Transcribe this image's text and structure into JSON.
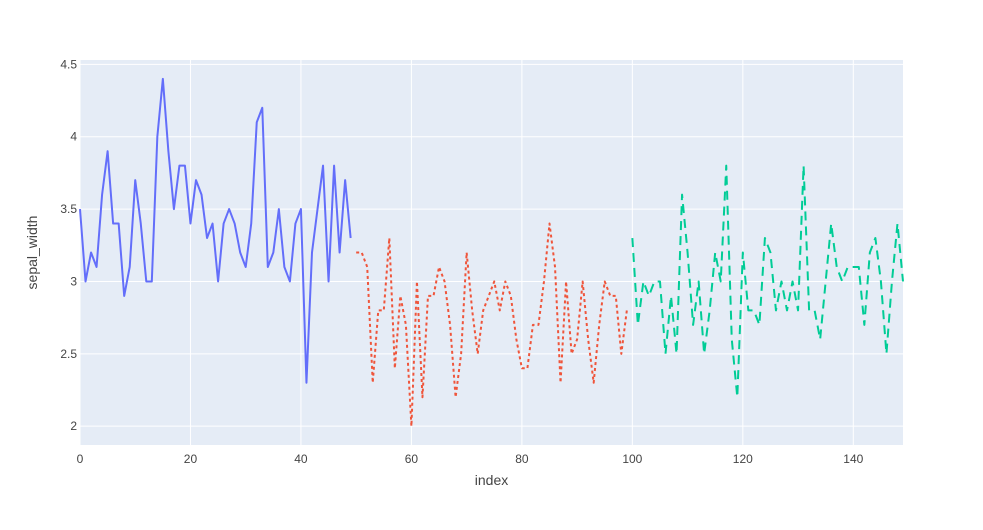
{
  "chart_data": {
    "type": "line",
    "title": "",
    "xlabel": "index",
    "ylabel": "sepal_width",
    "xlim": [
      0,
      149
    ],
    "ylim": [
      1.87,
      4.53
    ],
    "x_ticks": [
      0,
      20,
      40,
      60,
      80,
      100,
      120,
      140
    ],
    "y_ticks": [
      2,
      2.5,
      3,
      3.5,
      4,
      4.5
    ],
    "y_tick_labels": [
      "2",
      "2.5",
      "3",
      "3.5",
      "4",
      "4.5"
    ],
    "grid": true,
    "legend": "none",
    "colors": {
      "plot_background": "#e5ecf6",
      "grid": "#ffffff",
      "axis_text": "#444444"
    },
    "series": [
      {
        "color": "#636efa",
        "dash": "solid",
        "start_index": 0,
        "values": [
          3.5,
          3.0,
          3.2,
          3.1,
          3.6,
          3.9,
          3.4,
          3.4,
          2.9,
          3.1,
          3.7,
          3.4,
          3.0,
          3.0,
          4.0,
          4.4,
          3.9,
          3.5,
          3.8,
          3.8,
          3.4,
          3.7,
          3.6,
          3.3,
          3.4,
          3.0,
          3.4,
          3.5,
          3.4,
          3.2,
          3.1,
          3.4,
          4.1,
          4.2,
          3.1,
          3.2,
          3.5,
          3.1,
          3.0,
          3.4,
          3.5,
          2.3,
          3.2,
          3.5,
          3.8,
          3.0,
          3.8,
          3.2,
          3.7,
          3.3
        ]
      },
      {
        "color": "#ef553b",
        "dash": "dot",
        "start_index": 50,
        "values": [
          3.2,
          3.2,
          3.1,
          2.3,
          2.8,
          2.8,
          3.3,
          2.4,
          2.9,
          2.7,
          2.0,
          3.0,
          2.2,
          2.9,
          2.9,
          3.1,
          3.0,
          2.7,
          2.2,
          2.5,
          3.2,
          2.8,
          2.5,
          2.8,
          2.9,
          3.0,
          2.8,
          3.0,
          2.9,
          2.6,
          2.4,
          2.4,
          2.7,
          2.7,
          3.0,
          3.4,
          3.1,
          2.3,
          3.0,
          2.5,
          2.6,
          3.0,
          2.6,
          2.3,
          2.7,
          3.0,
          2.9,
          2.9,
          2.5,
          2.8
        ]
      },
      {
        "color": "#00cc96",
        "dash": "dash",
        "start_index": 100,
        "values": [
          3.3,
          2.7,
          3.0,
          2.9,
          3.0,
          3.0,
          2.5,
          2.9,
          2.5,
          3.6,
          3.2,
          2.7,
          3.0,
          2.5,
          2.8,
          3.2,
          3.0,
          3.8,
          2.6,
          2.2,
          3.2,
          2.8,
          2.8,
          2.7,
          3.3,
          3.2,
          2.8,
          3.0,
          2.8,
          3.0,
          2.8,
          3.8,
          2.8,
          2.8,
          2.6,
          3.0,
          3.4,
          3.1,
          3.0,
          3.1,
          3.1,
          3.1,
          2.7,
          3.2,
          3.3,
          3.0,
          2.5,
          3.0,
          3.4,
          3.0
        ]
      }
    ]
  }
}
